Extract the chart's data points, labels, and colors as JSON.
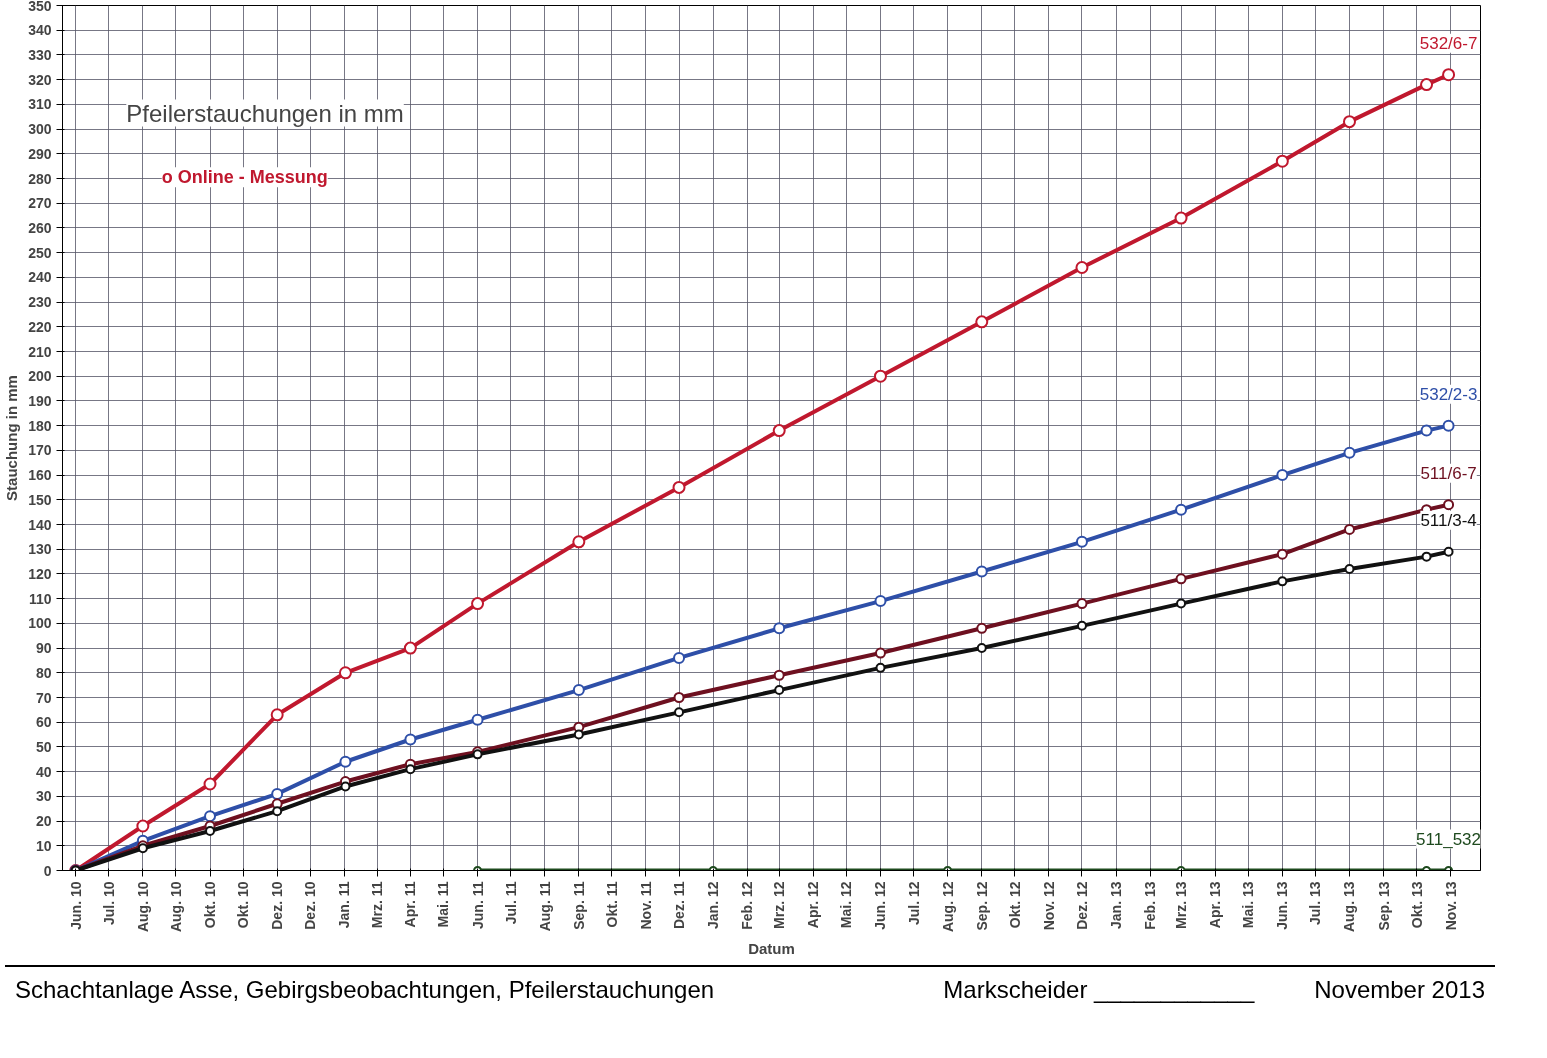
{
  "chart_data": {
    "type": "line",
    "title": "Pfeilerstauchungen in mm",
    "xlabel": "Datum",
    "ylabel": "Stauchung in mm",
    "x": [
      "2010-06-01",
      "2010-08-01",
      "2010-10-01",
      "2010-12-01",
      "2011-02-01",
      "2011-04-01",
      "2011-06-01",
      "2011-09-01",
      "2011-12-01",
      "2012-03-01",
      "2012-06-01",
      "2012-09-01",
      "2012-12-01",
      "2013-03-01",
      "2013-06-01",
      "2013-08-01",
      "2013-10-10",
      "2013-10-30"
    ],
    "series": [
      {
        "name": "532/6-7",
        "color": "#c0182e",
        "values": [
          0,
          18,
          35,
          63,
          80,
          90,
          108,
          133,
          155,
          178,
          200,
          222,
          244,
          264,
          287,
          303,
          318,
          322
        ]
      },
      {
        "name": "532/2-3",
        "color": "#2e4fa8",
        "values": [
          0,
          12,
          22,
          31,
          44,
          53,
          61,
          73,
          86,
          98,
          109,
          121,
          133,
          146,
          160,
          169,
          178,
          180
        ]
      },
      {
        "name": "511/6-7",
        "color": "#6e1020",
        "values": [
          0,
          10,
          18,
          27,
          36,
          43,
          48,
          58,
          70,
          79,
          88,
          98,
          108,
          118,
          128,
          138,
          146,
          148
        ]
      },
      {
        "name": "511/3-4",
        "color": "#111111",
        "values": [
          0,
          9,
          16,
          24,
          34,
          41,
          47,
          55,
          64,
          73,
          82,
          90,
          99,
          108,
          117,
          122,
          127,
          129
        ]
      },
      {
        "name": "511_532",
        "color": "#1e4a1e",
        "x": [
          "2011-06-01",
          "2012-01-01",
          "2012-08-01",
          "2013-03-01",
          "2013-10-10",
          "2013-10-30"
        ],
        "values": [
          0,
          0,
          0,
          0,
          0,
          0
        ]
      }
    ],
    "marker": "circle",
    "line_style": "solid",
    "grid": true,
    "xlim": [
      "2010-05-20",
      "2013-11-28"
    ],
    "xticks": [
      {
        "value": "2010-06-01",
        "label": "Jun. 10"
      },
      {
        "value": "2010-07-01",
        "label": "Jul. 10"
      },
      {
        "value": "2010-08-01",
        "label": "Aug. 10"
      },
      {
        "value": "2010-08-31",
        "label": "Aug. 10"
      },
      {
        "value": "2010-10-01",
        "label": "Okt. 10"
      },
      {
        "value": "2010-10-31",
        "label": "Okt. 10"
      },
      {
        "value": "2010-12-01",
        "label": "Dez. 10"
      },
      {
        "value": "2010-12-31",
        "label": "Dez. 10"
      },
      {
        "value": "2011-01-31",
        "label": "Jan. 11"
      },
      {
        "value": "2011-03-02",
        "label": "Mrz. 11"
      },
      {
        "value": "2011-04-01",
        "label": "Apr. 11"
      },
      {
        "value": "2011-05-01",
        "label": "Mai. 11"
      },
      {
        "value": "2011-06-01",
        "label": "Jun. 11"
      },
      {
        "value": "2011-07-01",
        "label": "Jul. 11"
      },
      {
        "value": "2011-08-01",
        "label": "Aug. 11"
      },
      {
        "value": "2011-09-01",
        "label": "Sep. 11"
      },
      {
        "value": "2011-10-01",
        "label": "Okt. 11"
      },
      {
        "value": "2011-11-01",
        "label": "Nov. 11"
      },
      {
        "value": "2011-12-01",
        "label": "Dez. 11"
      },
      {
        "value": "2012-01-01",
        "label": "Jan. 12"
      },
      {
        "value": "2012-02-01",
        "label": "Feb. 12"
      },
      {
        "value": "2012-03-01",
        "label": "Mrz. 12"
      },
      {
        "value": "2012-04-01",
        "label": "Apr. 12"
      },
      {
        "value": "2012-05-01",
        "label": "Mai. 12"
      },
      {
        "value": "2012-06-01",
        "label": "Jun. 12"
      },
      {
        "value": "2012-07-01",
        "label": "Jul. 12"
      },
      {
        "value": "2012-08-01",
        "label": "Aug. 12"
      },
      {
        "value": "2012-09-01",
        "label": "Sep. 12"
      },
      {
        "value": "2012-10-01",
        "label": "Okt. 12"
      },
      {
        "value": "2012-11-01",
        "label": "Nov. 12"
      },
      {
        "value": "2012-12-01",
        "label": "Dez. 12"
      },
      {
        "value": "2013-01-01",
        "label": "Jan. 13"
      },
      {
        "value": "2013-02-01",
        "label": "Feb. 13"
      },
      {
        "value": "2013-03-01",
        "label": "Mrz. 13"
      },
      {
        "value": "2013-04-01",
        "label": "Apr. 13"
      },
      {
        "value": "2013-05-01",
        "label": "Mai. 13"
      },
      {
        "value": "2013-06-01",
        "label": "Jun. 13"
      },
      {
        "value": "2013-07-01",
        "label": "Jul. 13"
      },
      {
        "value": "2013-08-01",
        "label": "Aug. 13"
      },
      {
        "value": "2013-09-01",
        "label": "Sep. 13"
      },
      {
        "value": "2013-10-01",
        "label": "Okt. 13"
      },
      {
        "value": "2013-11-01",
        "label": "Nov. 13"
      }
    ],
    "ylim": [
      0,
      350
    ],
    "yticks": [
      0,
      10,
      20,
      30,
      40,
      50,
      60,
      70,
      80,
      90,
      100,
      110,
      120,
      130,
      140,
      150,
      160,
      170,
      180,
      190,
      200,
      210,
      220,
      230,
      240,
      250,
      260,
      270,
      280,
      290,
      300,
      310,
      320,
      330,
      340,
      350
    ],
    "annotations": [
      "o Online - Messung",
      "Schachtanlage Asse, Gebirgsbeobachtungen, Pfeilerstauchungen",
      "Markscheider ____________",
      "November 2013"
    ]
  }
}
